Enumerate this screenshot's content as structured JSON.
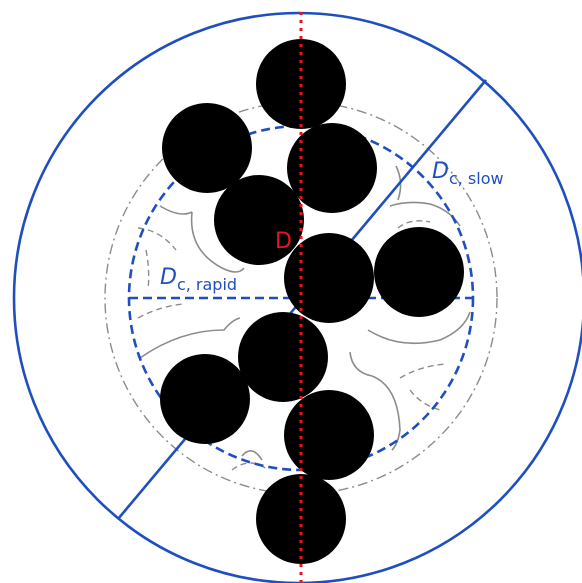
{
  "labels": {
    "d_slow_main": "D",
    "d_slow_sub": "c, slow",
    "d_rapid_main": "D",
    "d_rapid_sub": "c, rapid",
    "d_center": "D"
  },
  "colors": {
    "blue": "#1f4fbf",
    "red": "#e8141c",
    "gray": "#8c8c8c",
    "particle": "#000000"
  }
}
